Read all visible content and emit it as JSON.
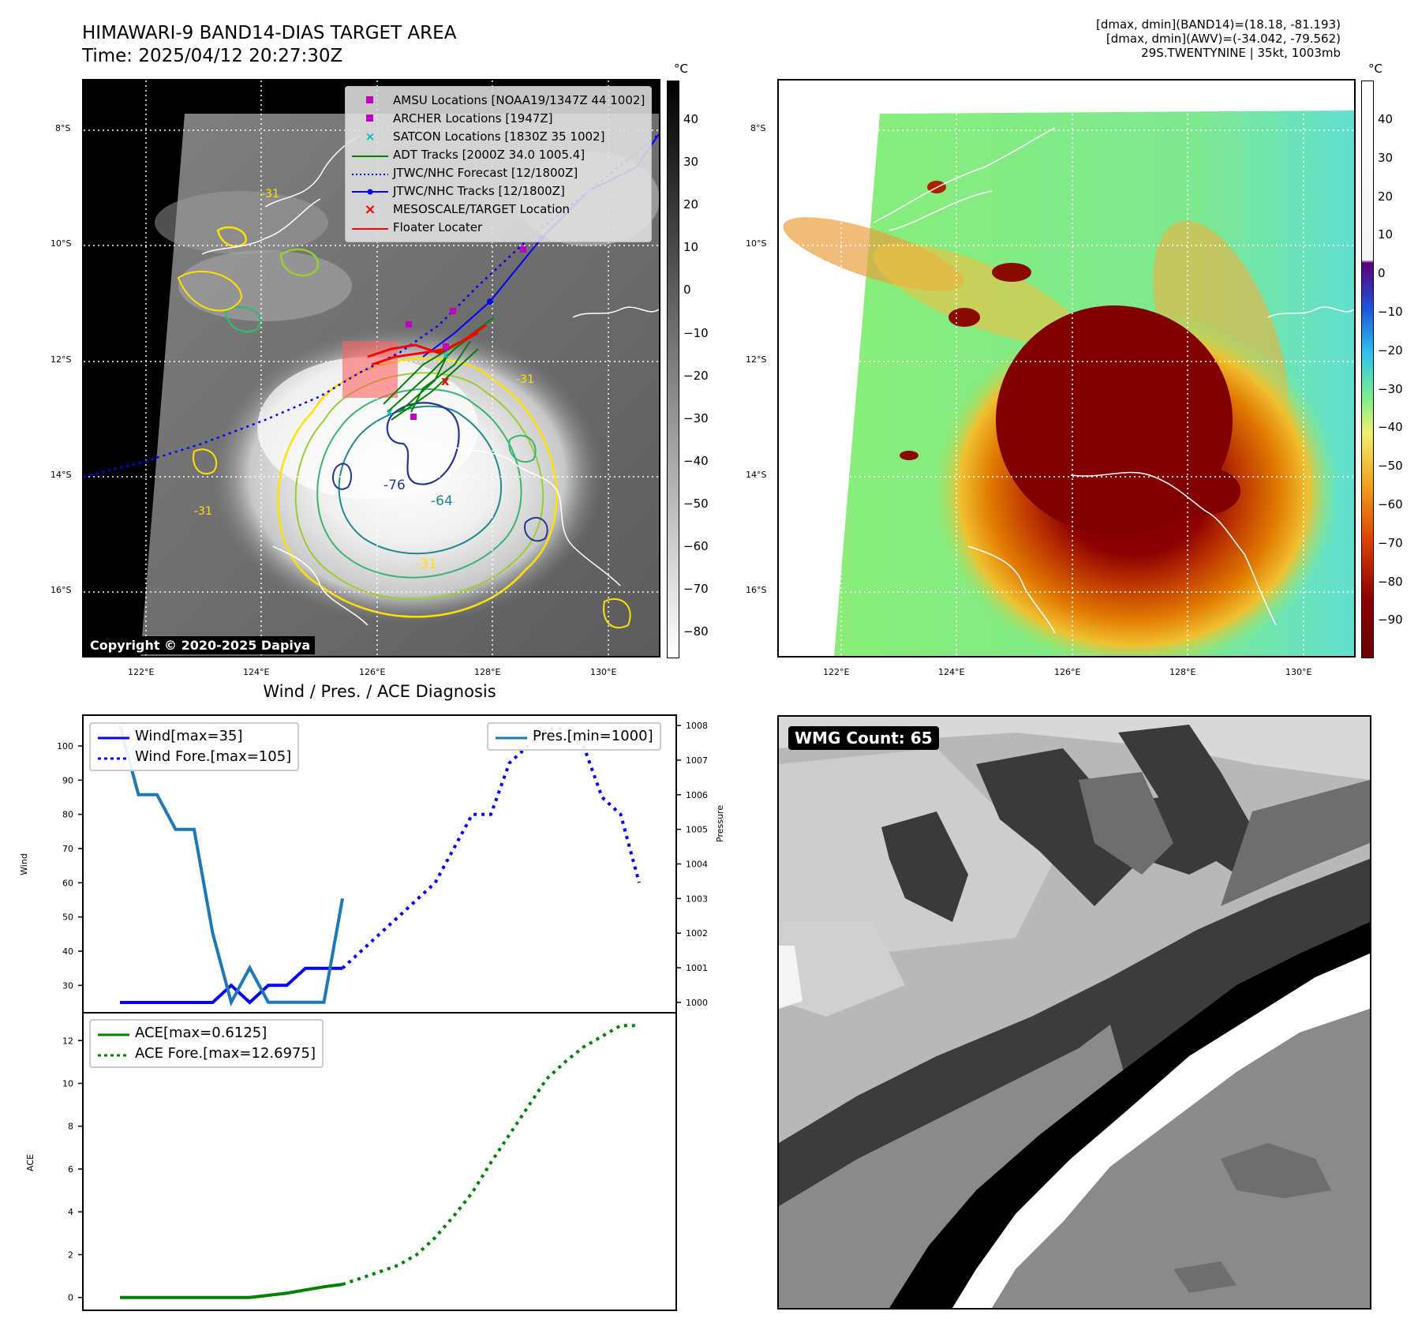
{
  "header": {
    "title_line1": "HIMAWARI-9 BAND14-DIAS TARGET AREA",
    "title_line2": "Time: 2025/04/12 20:27:30Z",
    "info_line1": "[dmax, dmin](BAND14)=(18.18, -81.193)",
    "info_line2": "[dmax, dmin](AWV)=(-34.042, -79.562)",
    "info_line3": "29S.TWENTYNINE | 35kt, 1003mb"
  },
  "map_left": {
    "legend": [
      {
        "label": "AMSU Locations [NOAA19/1347Z 44 1002]",
        "marker": "square",
        "color": "#c000c0"
      },
      {
        "label": "ARCHER Locations [1947Z]",
        "marker": "square",
        "color": "#c000c0"
      },
      {
        "label": "SATCON Locations [1830Z 35 1002]",
        "marker": "x",
        "color": "#00c0c0"
      },
      {
        "label": "ADT Tracks [2000Z 34.0 1005.4]",
        "marker": "line",
        "color": "#008000"
      },
      {
        "label": "JTWC/NHC Forecast [12/1800Z]",
        "marker": "dotted",
        "color": "#0000ff"
      },
      {
        "label": "JTWC/NHC Tracks [12/1800Z]",
        "marker": "line-dot",
        "color": "#0000ff"
      },
      {
        "label": "MESOSCALE/TARGET Location",
        "marker": "x",
        "color": "#ff0000"
      },
      {
        "label": "Floater Locater",
        "marker": "line",
        "color": "#ff0000"
      }
    ],
    "copyright": "Copyright © 2020-2025 Dapiya",
    "contour_labels": [
      "-31",
      "-76",
      "-64",
      "-31",
      "-31",
      "-31"
    ],
    "colorbar_unit": "°C",
    "colorbar_ticks": [
      "40",
      "30",
      "20",
      "10",
      "0",
      "−10",
      "−20",
      "−30",
      "−40",
      "−50",
      "−60",
      "−70",
      "−80"
    ]
  },
  "map_right": {
    "colorbar_unit": "°C",
    "colorbar_ticks": [
      "40",
      "30",
      "20",
      "10",
      "0",
      "−10",
      "−20",
      "−30",
      "−40",
      "−50",
      "−60",
      "−70",
      "−80",
      "−90"
    ]
  },
  "map_axes": {
    "lat_ticks": [
      "8°S",
      "10°S",
      "12°S",
      "14°S",
      "16°S"
    ],
    "lon_ticks": [
      "122°E",
      "124°E",
      "126°E",
      "128°E",
      "130°E"
    ]
  },
  "diagnosis": {
    "title": "Wind / Pres. / ACE Diagnosis",
    "wind_ylabel": "Wind",
    "pres_ylabel": "Pressure",
    "ace_ylabel": "ACE",
    "legend_wind": "Wind[max=35]",
    "legend_wind_fore": "Wind Fore.[max=105]",
    "legend_pres": "Pres.[min=1000]",
    "legend_ace": "ACE[max=0.6125]",
    "legend_ace_fore": "ACE Fore.[max=12.6975]"
  },
  "wmg": {
    "label": "WMG Count: 65"
  },
  "colors": {
    "wind": "#0000ff",
    "pressure": "#1f77b4",
    "ace": "#008000",
    "amsu": "#c000c0",
    "satcon": "#00c0c0",
    "target": "#ff0000"
  },
  "chart_data": [
    {
      "type": "line",
      "title": "Wind / Pres. / ACE Diagnosis",
      "ylabel": "Wind",
      "ylim": [
        22,
        109
      ],
      "yticks": [
        30,
        40,
        50,
        60,
        70,
        80,
        90,
        100
      ],
      "series": [
        {
          "name": "Wind[max=35]",
          "style": "solid",
          "color": "#0000ff",
          "x": [
            0,
            1,
            2,
            3,
            4,
            5,
            6,
            7,
            8,
            9,
            10,
            11,
            12
          ],
          "values": [
            25,
            25,
            25,
            25,
            25,
            25,
            30,
            25,
            30,
            30,
            35,
            35,
            35
          ]
        },
        {
          "name": "Wind Fore.[max=105]",
          "style": "dotted",
          "color": "#0000ff",
          "x": [
            12,
            13,
            14,
            15,
            16,
            17,
            18,
            19,
            20,
            21,
            22,
            23,
            24,
            25,
            26,
            27,
            28
          ],
          "values": [
            35,
            40,
            45,
            50,
            55,
            60,
            70,
            80,
            80,
            95,
            100,
            105,
            105,
            100,
            85,
            80,
            60
          ]
        }
      ]
    },
    {
      "type": "line",
      "ylabel": "Pressure",
      "ylim": [
        999.7,
        1008.3
      ],
      "yticks": [
        1000,
        1001,
        1002,
        1003,
        1004,
        1005,
        1006,
        1007,
        1008
      ],
      "series": [
        {
          "name": "Pres.[min=1000]",
          "style": "solid",
          "color": "#1f77b4",
          "x": [
            0,
            1,
            2,
            3,
            4,
            5,
            6,
            7,
            8,
            9,
            10,
            11,
            12
          ],
          "values": [
            1008,
            1006,
            1006,
            1005,
            1005,
            1002,
            1000,
            1001,
            1000,
            1000,
            1000,
            1000,
            1003
          ]
        }
      ]
    },
    {
      "type": "line",
      "ylabel": "ACE",
      "ylim": [
        -0.6,
        13.3
      ],
      "yticks": [
        0,
        2,
        4,
        6,
        8,
        10,
        12
      ],
      "series": [
        {
          "name": "ACE[max=0.6125]",
          "style": "solid",
          "color": "#008000",
          "x": [
            0,
            1,
            2,
            3,
            4,
            5,
            6,
            7,
            8,
            9,
            10,
            11,
            12
          ],
          "values": [
            0,
            0,
            0,
            0,
            0,
            0,
            0,
            0,
            0.1,
            0.2,
            0.35,
            0.5,
            0.6125
          ]
        },
        {
          "name": "ACE Fore.[max=12.6975]",
          "style": "dotted",
          "color": "#008000",
          "x": [
            12,
            13,
            14,
            15,
            16,
            17,
            18,
            19,
            20,
            21,
            22,
            23,
            24,
            25,
            26,
            27,
            28
          ],
          "values": [
            0.6125,
            0.9,
            1.2,
            1.5,
            2.0,
            2.8,
            3.8,
            4.9,
            6.3,
            7.6,
            8.9,
            10.2,
            11.0,
            11.7,
            12.2,
            12.6975,
            12.6975
          ]
        }
      ]
    }
  ]
}
